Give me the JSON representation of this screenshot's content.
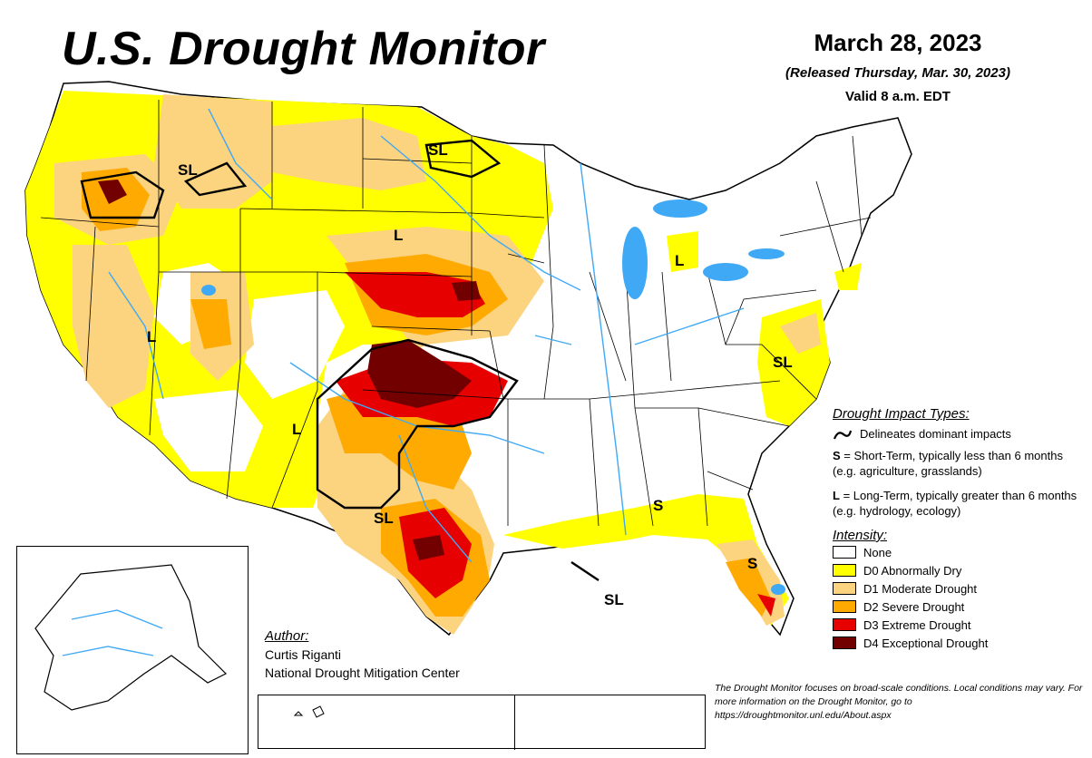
{
  "header": {
    "title": "U.S. Drought Monitor",
    "date": "March 28, 2023",
    "released": "(Released Thursday, Mar. 30, 2023)",
    "valid": "Valid 8 a.m. EDT"
  },
  "colors": {
    "none": "#ffffff",
    "d0": "#ffff00",
    "d1": "#fcd37f",
    "d2": "#ffaa00",
    "d3": "#e60000",
    "d4": "#730000",
    "water": "#3fa9f5",
    "borders": "#000000"
  },
  "map_labels": [
    {
      "text": "SL",
      "region": "idaho"
    },
    {
      "text": "SL",
      "region": "north-dakota"
    },
    {
      "text": "L",
      "region": "south-dakota"
    },
    {
      "text": "L",
      "region": "nevada"
    },
    {
      "text": "L",
      "region": "michigan"
    },
    {
      "text": "SL",
      "region": "north-carolina"
    },
    {
      "text": "L",
      "region": "new-mexico"
    },
    {
      "text": "SL",
      "region": "texas"
    },
    {
      "text": "S",
      "region": "alabama"
    },
    {
      "text": "S",
      "region": "florida"
    },
    {
      "text": "SL",
      "region": "gulf-coast"
    }
  ],
  "legend": {
    "impact_title": "Drought Impact Types:",
    "delineates": "Delineates dominant impacts",
    "short_term_key": "S",
    "short_term_text": " = Short-Term, typically less than 6 months (e.g. agriculture, grasslands)",
    "long_term_key": "L",
    "long_term_text": " = Long-Term, typically greater than 6 months (e.g. hydrology, ecology)",
    "intensity_title": "Intensity:",
    "intensity": [
      {
        "label": "None",
        "color": "#ffffff"
      },
      {
        "label": "D0 Abnormally Dry",
        "color": "#ffff00"
      },
      {
        "label": "D1 Moderate Drought",
        "color": "#fcd37f"
      },
      {
        "label": "D2 Severe Drought",
        "color": "#ffaa00"
      },
      {
        "label": "D3 Extreme Drought",
        "color": "#e60000"
      },
      {
        "label": "D4 Exceptional Drought",
        "color": "#730000"
      }
    ]
  },
  "author": {
    "label": "Author:",
    "name": "Curtis Riganti",
    "org": "National Drought Mitigation Center"
  },
  "footnote": "The Drought Monitor focuses on broad-scale conditions. Local conditions may vary. For more information on the Drought Monitor, go to https://droughtmonitor.unl.edu/About.aspx"
}
